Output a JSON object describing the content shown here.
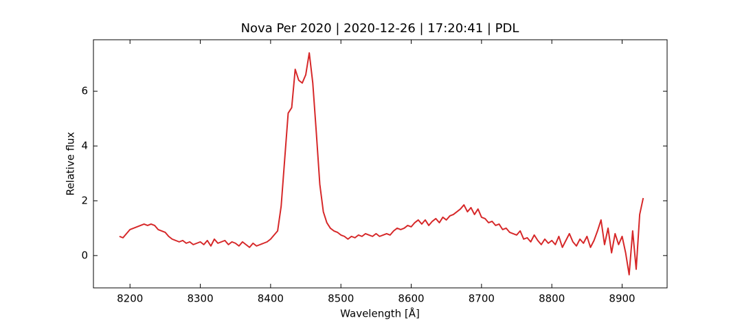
{
  "chart_data": {
    "type": "line",
    "title": "Nova Per 2020 | 2020-12-26 | 17:20:41 | PDL",
    "x_label": "Wavelength [Å]",
    "y_label": "Relative flux",
    "xlim": [
      8148,
      8964
    ],
    "ylim": [
      -1.18,
      7.88
    ],
    "xticks": [
      8200,
      8300,
      8400,
      8500,
      8600,
      8700,
      8800,
      8900
    ],
    "yticks": [
      0,
      2,
      4,
      6
    ],
    "grid": false,
    "x": [
      8185,
      8190,
      8195,
      8200,
      8205,
      8210,
      8215,
      8220,
      8225,
      8230,
      8235,
      8240,
      8245,
      8250,
      8255,
      8260,
      8265,
      8270,
      8275,
      8280,
      8285,
      8290,
      8295,
      8300,
      8305,
      8310,
      8315,
      8320,
      8325,
      8330,
      8335,
      8340,
      8345,
      8350,
      8355,
      8360,
      8365,
      8370,
      8375,
      8380,
      8385,
      8390,
      8395,
      8400,
      8405,
      8410,
      8415,
      8420,
      8425,
      8430,
      8435,
      8440,
      8445,
      8450,
      8455,
      8460,
      8465,
      8470,
      8475,
      8480,
      8485,
      8490,
      8495,
      8500,
      8505,
      8510,
      8515,
      8520,
      8525,
      8530,
      8535,
      8540,
      8545,
      8550,
      8555,
      8560,
      8565,
      8570,
      8575,
      8580,
      8585,
      8590,
      8595,
      8600,
      8605,
      8610,
      8615,
      8620,
      8625,
      8630,
      8635,
      8640,
      8645,
      8650,
      8655,
      8660,
      8665,
      8670,
      8675,
      8680,
      8685,
      8690,
      8695,
      8700,
      8705,
      8710,
      8715,
      8720,
      8725,
      8730,
      8735,
      8740,
      8745,
      8750,
      8755,
      8760,
      8765,
      8770,
      8775,
      8780,
      8785,
      8790,
      8795,
      8800,
      8805,
      8810,
      8815,
      8820,
      8825,
      8830,
      8835,
      8840,
      8845,
      8850,
      8855,
      8860,
      8865,
      8870,
      8875,
      8880,
      8885,
      8890,
      8895,
      8900,
      8905,
      8910,
      8915,
      8920,
      8925,
      8930
    ],
    "series": [
      {
        "color": "#d62728",
        "values": [
          0.7,
          0.65,
          0.8,
          0.95,
          1.0,
          1.05,
          1.1,
          1.15,
          1.1,
          1.15,
          1.1,
          0.95,
          0.9,
          0.85,
          0.7,
          0.6,
          0.55,
          0.5,
          0.55,
          0.45,
          0.5,
          0.4,
          0.45,
          0.5,
          0.4,
          0.55,
          0.35,
          0.6,
          0.45,
          0.5,
          0.55,
          0.4,
          0.5,
          0.45,
          0.35,
          0.5,
          0.4,
          0.3,
          0.45,
          0.35,
          0.4,
          0.45,
          0.5,
          0.6,
          0.75,
          0.9,
          1.8,
          3.5,
          5.2,
          5.4,
          6.8,
          6.4,
          6.3,
          6.6,
          7.4,
          6.3,
          4.5,
          2.6,
          1.6,
          1.2,
          1.0,
          0.9,
          0.85,
          0.75,
          0.7,
          0.6,
          0.7,
          0.65,
          0.75,
          0.7,
          0.8,
          0.75,
          0.7,
          0.8,
          0.7,
          0.75,
          0.8,
          0.75,
          0.9,
          1.0,
          0.95,
          1.0,
          1.1,
          1.05,
          1.2,
          1.3,
          1.15,
          1.3,
          1.1,
          1.25,
          1.35,
          1.2,
          1.4,
          1.3,
          1.45,
          1.5,
          1.6,
          1.7,
          1.85,
          1.6,
          1.75,
          1.5,
          1.7,
          1.4,
          1.35,
          1.2,
          1.25,
          1.1,
          1.15,
          0.95,
          1.0,
          0.85,
          0.8,
          0.75,
          0.9,
          0.6,
          0.65,
          0.5,
          0.75,
          0.55,
          0.4,
          0.6,
          0.45,
          0.55,
          0.4,
          0.7,
          0.3,
          0.55,
          0.8,
          0.5,
          0.35,
          0.6,
          0.45,
          0.7,
          0.3,
          0.55,
          0.9,
          1.3,
          0.4,
          1.0,
          0.1,
          0.8,
          0.4,
          0.7,
          0.1,
          -0.7,
          0.9,
          -0.5,
          1.5,
          2.1
        ]
      }
    ]
  }
}
